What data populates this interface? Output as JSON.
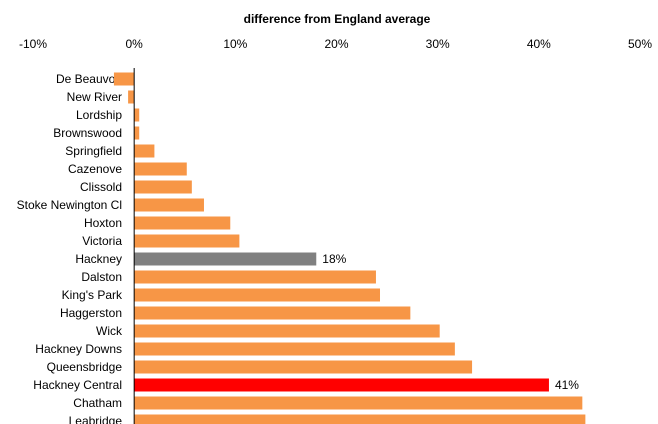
{
  "chart_data": {
    "type": "bar",
    "orientation": "horizontal",
    "title": "difference from England  average",
    "xlabel": "",
    "ylabel": "",
    "xlim": [
      -0.1,
      0.5
    ],
    "x_ticks": [
      -0.1,
      0,
      0.1,
      0.2,
      0.3,
      0.4,
      0.5
    ],
    "x_tick_labels": [
      "-10%",
      "0%",
      "10%",
      "20%",
      "30%",
      "40%",
      "50%"
    ],
    "x_axis_position": "top",
    "grid": false,
    "legend": "none",
    "categories": [
      "De Beauvoir",
      "New River",
      "Lordship",
      "Brownswood",
      "Springfield",
      "Cazenove",
      "Clissold",
      "Stoke Newington Cl",
      "Hoxton",
      "Victoria",
      "Hackney",
      "Dalston",
      "King's Park",
      "Haggerston",
      "Wick",
      "Hackney Downs",
      "Queensbridge",
      "Hackney Central",
      "Chatham",
      "Leabridge"
    ],
    "values": [
      -0.02,
      -0.006,
      0.005,
      0.005,
      0.02,
      0.052,
      0.057,
      0.069,
      0.095,
      0.104,
      0.18,
      0.239,
      0.243,
      0.273,
      0.302,
      0.317,
      0.334,
      0.41,
      0.443,
      0.446
    ],
    "data_labels": {
      "Hackney": "18%",
      "Hackney Central": "41%"
    },
    "colors": {
      "default": "#F79646",
      "Hackney": "#808080",
      "Hackney Central": "#FF0000"
    }
  }
}
